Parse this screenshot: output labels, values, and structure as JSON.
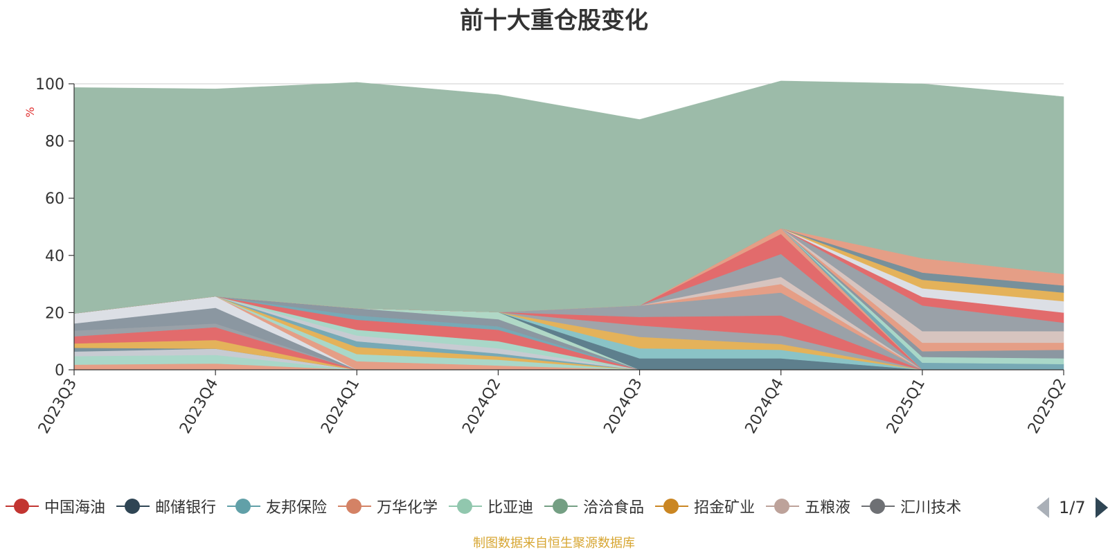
{
  "chart_data": {
    "type": "area",
    "stacked": true,
    "title": "前十大重仓股变化",
    "ylabel": "%",
    "ylim": [
      0,
      100
    ],
    "yticks": [
      0,
      20,
      40,
      60,
      80,
      100
    ],
    "categories": [
      "2023Q3",
      "2023Q4",
      "2024Q1",
      "2024Q2",
      "2024Q3",
      "2024Q4",
      "2025Q1",
      "2025Q2"
    ],
    "series": [
      {
        "color": "#e59e86",
        "values": [
          1.8,
          2.2,
          0,
          0,
          0,
          0,
          0,
          0
        ]
      },
      {
        "color": "#a9d7c8",
        "values": [
          3.0,
          3.0,
          0,
          0,
          0,
          0,
          0,
          0
        ]
      },
      {
        "color": "#c7cbd2",
        "values": [
          1.6,
          2.2,
          0,
          0,
          0,
          0,
          0,
          0
        ]
      },
      {
        "color": "#77909b",
        "values": [
          1.3,
          0,
          0,
          0,
          0,
          0,
          0,
          0
        ]
      },
      {
        "color": "#e4b25a",
        "values": [
          1.5,
          3.0,
          0,
          0,
          0,
          0,
          0,
          0
        ]
      },
      {
        "color": "#e26b6c",
        "values": [
          2.5,
          4.5,
          0,
          0,
          0,
          0,
          0,
          0
        ]
      },
      {
        "color": "#9aa1a8",
        "values": [
          2.0,
          1.3,
          0,
          0,
          0,
          0,
          0,
          0
        ]
      },
      {
        "color": "#8b97a1",
        "values": [
          2.5,
          5.5,
          0,
          0,
          0,
          0,
          0,
          0
        ]
      },
      {
        "color": "#dcdfe5",
        "values": [
          3.5,
          4.0,
          0,
          0,
          0,
          0,
          0,
          0
        ]
      },
      {
        "color": "#e59e86",
        "values": [
          0,
          0,
          3.0,
          1.5,
          0,
          0,
          0,
          0
        ]
      },
      {
        "color": "#a9d7c8",
        "values": [
          0,
          0,
          2.5,
          2.0,
          0,
          0,
          0,
          0
        ]
      },
      {
        "color": "#e4b25a",
        "values": [
          0,
          0,
          2.5,
          1.2,
          0,
          0,
          0,
          0
        ]
      },
      {
        "color": "#77a9b5",
        "values": [
          0,
          0,
          2.0,
          1.0,
          0,
          0,
          0,
          0
        ]
      },
      {
        "color": "#c7cbd2",
        "values": [
          0,
          0,
          2.0,
          1.8,
          0,
          0,
          0,
          0
        ]
      },
      {
        "color": "#a9d7c8",
        "values": [
          0,
          0,
          2.0,
          2.5,
          0,
          0,
          0,
          0
        ]
      },
      {
        "color": "#e26b6c",
        "values": [
          0,
          0,
          3.5,
          4.0,
          0,
          0,
          0,
          0
        ]
      },
      {
        "color": "#77a9b5",
        "values": [
          0,
          0,
          1.5,
          1.2,
          0,
          0,
          0,
          0
        ]
      },
      {
        "color": "#8b97a1",
        "values": [
          0,
          0,
          2.5,
          2.5,
          0,
          0,
          0,
          0
        ]
      },
      {
        "color": "#b0d8c6",
        "values": [
          0,
          0,
          0,
          2.5,
          0,
          0,
          0,
          0
        ]
      },
      {
        "color": "#5e7f8d",
        "values": [
          0,
          0,
          0,
          0,
          4.0,
          4.0,
          0,
          0
        ]
      },
      {
        "color": "#8ac3c6",
        "values": [
          0,
          0,
          0,
          0,
          3.5,
          3.0,
          0,
          0
        ]
      },
      {
        "color": "#e4b25a",
        "values": [
          0,
          0,
          0,
          0,
          4.0,
          2.0,
          0,
          0
        ]
      },
      {
        "color": "#a0a4aa",
        "values": [
          0,
          0,
          0,
          0,
          4.0,
          3.0,
          0,
          0
        ]
      },
      {
        "color": "#e26b6c",
        "values": [
          0,
          0,
          0,
          0,
          3.0,
          7.0,
          0,
          0
        ]
      },
      {
        "color": "#9aa1a8",
        "values": [
          0,
          0,
          0,
          0,
          4.0,
          8.0,
          0,
          0
        ]
      },
      {
        "color": "#e59e86",
        "values": [
          0,
          0,
          0,
          0,
          0,
          3.0,
          0,
          0
        ]
      },
      {
        "color": "#d7c4bf",
        "values": [
          0,
          0,
          0,
          0,
          0,
          2.5,
          0,
          0
        ]
      },
      {
        "color": "#9aa1a8",
        "values": [
          0,
          0,
          0,
          0,
          0,
          8.0,
          0,
          0
        ]
      },
      {
        "color": "#e26b6c",
        "values": [
          0,
          0,
          0,
          0,
          0,
          7.0,
          0,
          0
        ]
      },
      {
        "color": "#e59e86",
        "values": [
          0,
          0,
          0,
          0,
          0,
          2.0,
          0,
          0
        ]
      },
      {
        "color": "#77a9b5",
        "values": [
          0,
          0,
          0,
          0,
          0,
          0,
          2.5,
          2.0
        ]
      },
      {
        "color": "#a9d7c8",
        "values": [
          0,
          0,
          0,
          0,
          0,
          0,
          2.0,
          2.0
        ]
      },
      {
        "color": "#8b97a1",
        "values": [
          0,
          0,
          0,
          0,
          0,
          0,
          2.0,
          3.0
        ]
      },
      {
        "color": "#e59e86",
        "values": [
          0,
          0,
          0,
          0,
          0,
          0,
          3.0,
          2.5
        ]
      },
      {
        "color": "#d7c4bf",
        "values": [
          0,
          0,
          0,
          0,
          0,
          0,
          4.0,
          4.0
        ]
      },
      {
        "color": "#9aa1a8",
        "values": [
          0,
          0,
          0,
          0,
          0,
          0,
          9.0,
          3.0
        ]
      },
      {
        "color": "#e26b6c",
        "values": [
          0,
          0,
          0,
          0,
          0,
          0,
          3.0,
          3.5
        ]
      },
      {
        "color": "#dcdfe5",
        "values": [
          0,
          0,
          0,
          0,
          0,
          0,
          3.0,
          4.0
        ]
      },
      {
        "color": "#e4b25a",
        "values": [
          0,
          0,
          0,
          0,
          0,
          0,
          3.0,
          3.0
        ]
      },
      {
        "color": "#77909b",
        "values": [
          0,
          0,
          0,
          0,
          0,
          0,
          2.5,
          2.5
        ]
      },
      {
        "color": "#e59e86",
        "values": [
          0,
          0,
          0,
          0,
          0,
          0,
          5.0,
          4.0
        ]
      },
      {
        "color": "#9cbba9",
        "values": [
          79.0,
          72.5,
          79.0,
          76.0,
          65.0,
          51.5,
          61.0,
          62.0
        ]
      }
    ],
    "legend": {
      "position": "bottom",
      "items": [
        {
          "name": "中国海油",
          "color": "#c23531"
        },
        {
          "name": "邮储银行",
          "color": "#2f4554"
        },
        {
          "name": "友邦保险",
          "color": "#61a0a8"
        },
        {
          "name": "万华化学",
          "color": "#d48265"
        },
        {
          "name": "比亚迪",
          "color": "#91c7ae"
        },
        {
          "name": "洽洽食品",
          "color": "#749f83"
        },
        {
          "name": "招金矿业",
          "color": "#ca8622"
        },
        {
          "name": "五粮液",
          "color": "#bda29a"
        },
        {
          "name": "汇川技术",
          "color": "#6e7074"
        }
      ],
      "page": "1/7"
    },
    "source_note": "制图数据来自恒生聚源数据库"
  }
}
